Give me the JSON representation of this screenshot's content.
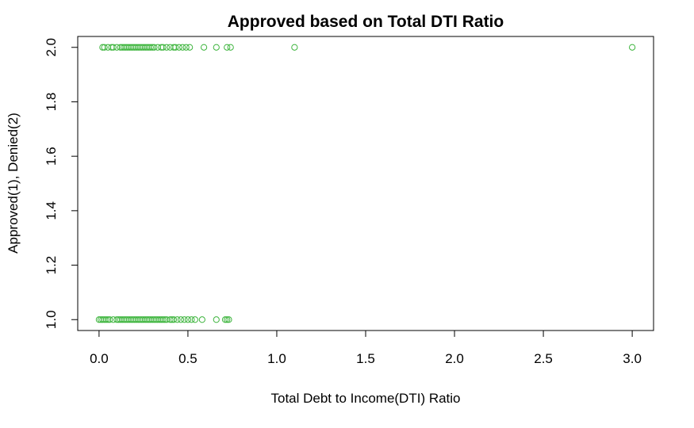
{
  "chart_data": {
    "type": "scatter",
    "title": "Approved based on Total DTI Ratio",
    "xlabel": "Total Debt to Income(DTI) Ratio",
    "ylabel": "Approved(1), Denied(2)",
    "xlim": [
      -0.12,
      3.12
    ],
    "ylim": [
      0.96,
      2.04
    ],
    "xticks": [
      0.0,
      0.5,
      1.0,
      1.5,
      2.0,
      2.5,
      3.0
    ],
    "xtick_labels": [
      "0.0",
      "0.5",
      "1.0",
      "1.5",
      "2.0",
      "2.5",
      "3.0"
    ],
    "yticks": [
      1.0,
      1.2,
      1.4,
      1.6,
      1.8,
      2.0
    ],
    "ytick_labels": [
      "1.0",
      "1.2",
      "1.4",
      "1.6",
      "1.8",
      "2.0"
    ],
    "grid": false,
    "marker_color": "#3cb43c",
    "series": [
      {
        "x": [
          0.0,
          0.01,
          0.02,
          0.03,
          0.04,
          0.05,
          0.06,
          0.08,
          0.1,
          0.11,
          0.12,
          0.13,
          0.14,
          0.15,
          0.16,
          0.17,
          0.18,
          0.19,
          0.2,
          0.21,
          0.22,
          0.23,
          0.24,
          0.25,
          0.26,
          0.27,
          0.28,
          0.29,
          0.3,
          0.31,
          0.32,
          0.33,
          0.34,
          0.35,
          0.36,
          0.37,
          0.38,
          0.4,
          0.41,
          0.42,
          0.44,
          0.46,
          0.48,
          0.5,
          0.52,
          0.54,
          0.58,
          0.66,
          0.71,
          0.72,
          0.73,
          0.02,
          0.03,
          0.05,
          0.07,
          0.08,
          0.1,
          0.12,
          0.13,
          0.14,
          0.15,
          0.16,
          0.17,
          0.18,
          0.19,
          0.2,
          0.21,
          0.22,
          0.23,
          0.24,
          0.25,
          0.26,
          0.27,
          0.28,
          0.29,
          0.3,
          0.31,
          0.33,
          0.35,
          0.36,
          0.38,
          0.4,
          0.42,
          0.43,
          0.45,
          0.47,
          0.49,
          0.51,
          0.59,
          0.66,
          0.72,
          0.74,
          1.1,
          3.0
        ],
        "y": [
          1,
          1,
          1,
          1,
          1,
          1,
          1,
          1,
          1,
          1,
          1,
          1,
          1,
          1,
          1,
          1,
          1,
          1,
          1,
          1,
          1,
          1,
          1,
          1,
          1,
          1,
          1,
          1,
          1,
          1,
          1,
          1,
          1,
          1,
          1,
          1,
          1,
          1,
          1,
          1,
          1,
          1,
          1,
          1,
          1,
          1,
          1,
          1,
          1,
          1,
          1,
          2,
          2,
          2,
          2,
          2,
          2,
          2,
          2,
          2,
          2,
          2,
          2,
          2,
          2,
          2,
          2,
          2,
          2,
          2,
          2,
          2,
          2,
          2,
          2,
          2,
          2,
          2,
          2,
          2,
          2,
          2,
          2,
          2,
          2,
          2,
          2,
          2,
          2,
          2,
          2,
          2,
          2,
          2
        ]
      }
    ]
  }
}
